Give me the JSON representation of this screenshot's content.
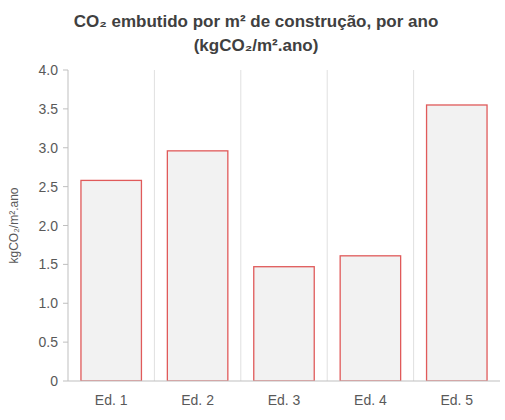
{
  "chart_data": {
    "type": "bar",
    "title": "CO₂ embutido por m² de construção, por ano",
    "subtitle": "(kgCO₂/m².ano)",
    "y_label": "kgCO₂/m².ano",
    "categories": [
      "Ed. 1",
      "Ed. 2",
      "Ed. 3",
      "Ed. 4",
      "Ed. 5"
    ],
    "values": [
      2.58,
      2.96,
      1.47,
      1.61,
      3.55
    ],
    "color": "#e05a5a",
    "ylim": [
      0,
      4
    ],
    "yticks": [
      0,
      0.5,
      {
        "value": 1,
        "label": "1.0"
      },
      1.5,
      {
        "value": 2,
        "label": "2.0"
      },
      2.5,
      {
        "value": 3,
        "label": "3.0"
      },
      3.5,
      {
        "value": 4,
        "label": "4.0"
      }
    ],
    "grid": true
  }
}
